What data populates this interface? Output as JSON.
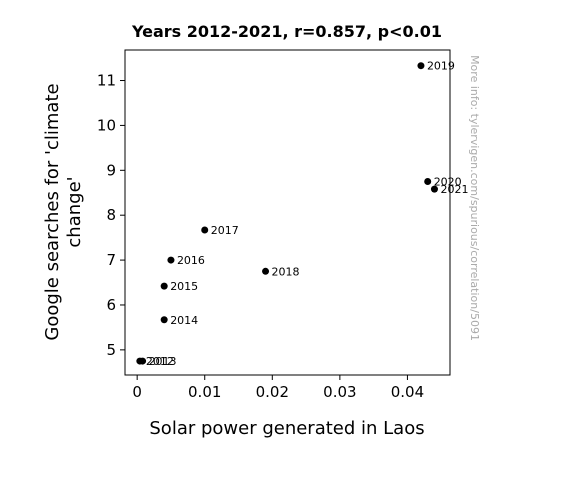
{
  "chart_data": {
    "type": "scatter",
    "title": "Years 2012-2021, r=0.857, p<0.01",
    "xlabel": "Solar power generated in Laos",
    "ylabel_lines": [
      "Google searches for 'climate",
      "change'"
    ],
    "xlim": [
      -0.0018,
      0.0463
    ],
    "ylim": [
      4.44,
      11.68
    ],
    "xticks": [
      0,
      0.01,
      0.02,
      0.03,
      0.04
    ],
    "xtick_labels": [
      "0",
      "0.01",
      "0.02",
      "0.03",
      "0.04"
    ],
    "yticks": [
      5,
      6,
      7,
      8,
      9,
      10,
      11
    ],
    "ytick_labels": [
      "5",
      "6",
      "7",
      "8",
      "9",
      "10",
      "11"
    ],
    "grid": false,
    "legend": "none",
    "point_color": "#000000",
    "points": [
      {
        "label": "2012",
        "x": 0.0004,
        "y": 4.75
      },
      {
        "label": "2013",
        "x": 0.0008,
        "y": 4.75
      },
      {
        "label": "2014",
        "x": 0.004,
        "y": 5.67
      },
      {
        "label": "2015",
        "x": 0.004,
        "y": 6.42
      },
      {
        "label": "2016",
        "x": 0.005,
        "y": 7.0
      },
      {
        "label": "2017",
        "x": 0.01,
        "y": 7.67
      },
      {
        "label": "2018",
        "x": 0.019,
        "y": 6.75
      },
      {
        "label": "2019",
        "x": 0.042,
        "y": 11.33
      },
      {
        "label": "2020",
        "x": 0.043,
        "y": 8.75
      },
      {
        "label": "2021",
        "x": 0.044,
        "y": 8.58
      }
    ]
  },
  "watermark": "More info: tylervigen.com/spurious/correlation/5091"
}
